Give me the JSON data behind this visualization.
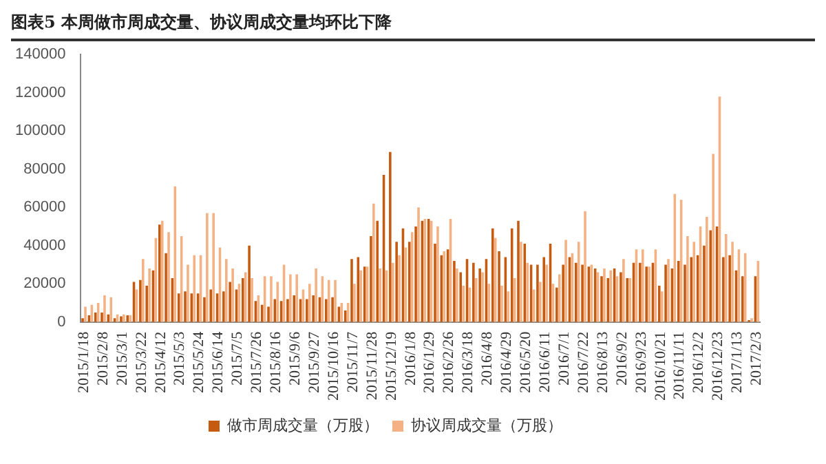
{
  "chart_data": {
    "type": "bar",
    "title": "图表5 本周做市周成交量、协议周成交量均环比下降",
    "categories": [
      "2015/1/18",
      null,
      null,
      "2015/2/8",
      null,
      null,
      "2015/3/1",
      null,
      null,
      "2015/3/22",
      null,
      null,
      "2015/4/12",
      null,
      null,
      "2015/5/3",
      null,
      null,
      "2015/5/24",
      null,
      null,
      "2015/6/14",
      null,
      null,
      "2015/7/5",
      null,
      null,
      "2015/7/26",
      null,
      null,
      "2015/8/16",
      null,
      null,
      "2015/9/6",
      null,
      null,
      "2015/9/27",
      null,
      null,
      "2015/10/16",
      null,
      null,
      "2015/11/7",
      null,
      null,
      "2015/11/28",
      null,
      null,
      "2015/12/19",
      null,
      null,
      "2016/1/8",
      null,
      null,
      "2016/1/29",
      null,
      null,
      "2016/2/26",
      null,
      null,
      "2016/3/18",
      null,
      null,
      "2016/4/8",
      null,
      null,
      "2016/4/29",
      null,
      null,
      "2016/5/20",
      null,
      null,
      "2016/6/11",
      null,
      null,
      "2016/7/1",
      null,
      null,
      "2016/7/22",
      null,
      null,
      "2016/8/13",
      null,
      null,
      "2016/9/2",
      null,
      null,
      "2016/9/23",
      null,
      null,
      "2016/10/21",
      null,
      null,
      "2016/11/11",
      null,
      null,
      "2016/12/2",
      null,
      null,
      "2016/12/23",
      null,
      null,
      "2017/1/13",
      null,
      null,
      "2017/2/3"
    ],
    "series": [
      {
        "name": "做市周成交量（万股）",
        "color": "#c55a11",
        "values": [
          2000,
          3500,
          5000,
          5000,
          4000,
          2000,
          3000,
          3500,
          21000,
          22000,
          19000,
          27000,
          51000,
          36000,
          23000,
          15000,
          16000,
          15000,
          15000,
          13000,
          17000,
          15000,
          16000,
          21000,
          17000,
          23000,
          40000,
          11000,
          9000,
          8000,
          12000,
          11000,
          12000,
          14000,
          12000,
          12000,
          14000,
          13000,
          12000,
          13000,
          8000,
          6000,
          33000,
          34000,
          29000,
          45000,
          53000,
          77000,
          89000,
          42000,
          49000,
          42000,
          50000,
          53000,
          54000,
          41000,
          35000,
          38000,
          32000,
          26000,
          33000,
          31000,
          28000,
          33000,
          49000,
          37000,
          34000,
          49000,
          53000,
          41000,
          30000,
          30000,
          34000,
          41000,
          18000,
          30000,
          34000,
          31000,
          30000,
          29000,
          28000,
          24000,
          23000,
          28000,
          26000,
          23000,
          31000,
          31000,
          29000,
          31000,
          19000,
          30000,
          28000,
          32000,
          30000,
          34000,
          35000,
          40000,
          48000,
          50000,
          34000,
          35000,
          27000,
          24000,
          1000,
          24000
        ]
      },
      {
        "name": "协议周成交量（万股）",
        "color": "#f4b183",
        "values": [
          8000,
          9000,
          10000,
          14000,
          13000,
          4000,
          4000,
          3500,
          17000,
          33000,
          28000,
          44000,
          53000,
          47000,
          71000,
          45000,
          30000,
          35000,
          35000,
          57000,
          57000,
          39000,
          33000,
          28000,
          20000,
          26000,
          23000,
          14000,
          24000,
          24000,
          21000,
          30000,
          25000,
          25000,
          17000,
          20000,
          28000,
          24000,
          22000,
          22000,
          10000,
          10000,
          20000,
          27000,
          29000,
          62000,
          28000,
          27000,
          31000,
          35000,
          39000,
          47000,
          60000,
          54000,
          53000,
          50000,
          37000,
          54000,
          28000,
          19000,
          18000,
          23000,
          26000,
          20000,
          44000,
          19000,
          16000,
          23000,
          42000,
          31000,
          17000,
          21000,
          30000,
          20000,
          25000,
          43000,
          36000,
          42000,
          58000,
          30000,
          26000,
          28000,
          27000,
          24000,
          33000,
          23000,
          38000,
          38000,
          29000,
          38000,
          16000,
          33000,
          67000,
          64000,
          45000,
          42000,
          50000,
          55000,
          88000,
          118000,
          46000,
          42000,
          38000,
          36000,
          2000,
          32000
        ]
      }
    ],
    "ylim": [
      0,
      140000
    ],
    "yticks": [
      0,
      20000,
      40000,
      60000,
      80000,
      100000,
      120000,
      140000
    ],
    "legend": "bottom"
  }
}
